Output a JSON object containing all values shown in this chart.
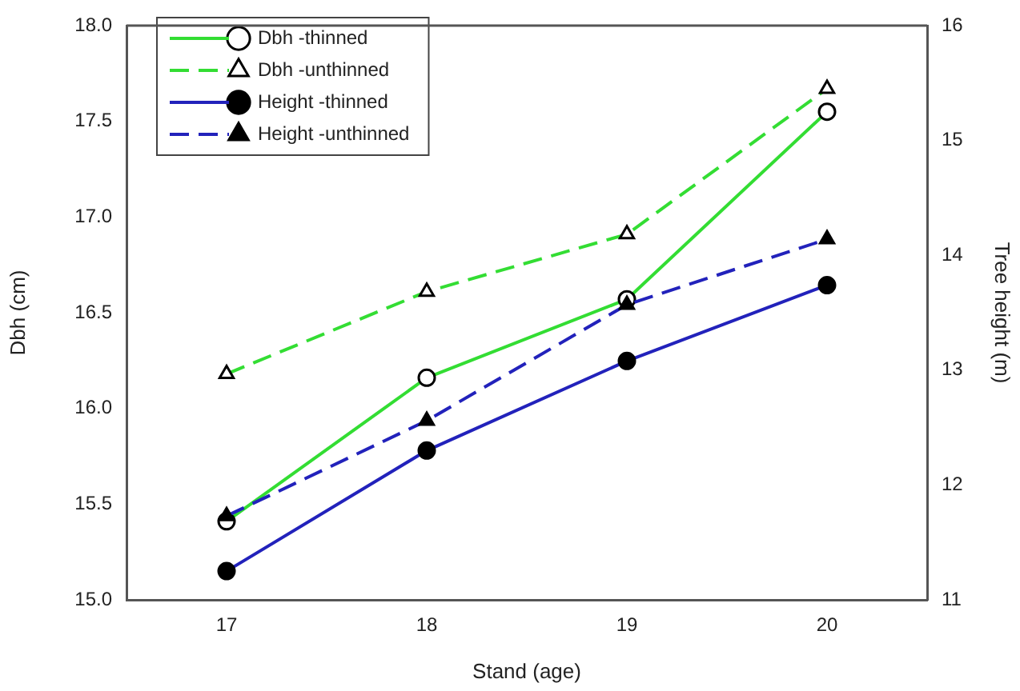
{
  "chart_data": {
    "type": "line",
    "xlabel": "Stand (age)",
    "ylabel": "Dbh (cm)",
    "y2label": "Tree height (m)",
    "x": [
      17,
      18,
      19,
      20
    ],
    "xlim": [
      16.5,
      20.5
    ],
    "xticks": [
      17,
      18,
      19,
      20
    ],
    "ylim": [
      15,
      18
    ],
    "yticks": [
      {
        "value": 15,
        "label": "15.0"
      },
      {
        "value": 15.5,
        "label": "15.5"
      },
      {
        "value": 16,
        "label": "16.0"
      },
      {
        "value": 16.5,
        "label": "16.5"
      },
      {
        "value": 17,
        "label": "17.0"
      },
      {
        "value": 17.5,
        "label": "17.5"
      },
      {
        "value": 18,
        "label": "18.0"
      }
    ],
    "y2lim": [
      11,
      16
    ],
    "y2ticks": [
      11,
      12,
      13,
      14,
      15,
      16
    ],
    "grid": false,
    "legend": "top left",
    "series": [
      {
        "name": "Dbh -thinned",
        "color": "#33dd33",
        "marker": "circle",
        "line_style": "solid",
        "values": [
          15.41,
          16.16,
          16.57,
          17.55
        ]
      },
      {
        "name": "Dbh -unthinned",
        "color": "#33dd33",
        "marker": "triangle",
        "line_style": "dashed",
        "values": [
          16.18,
          16.61,
          16.91,
          17.67
        ]
      },
      {
        "name": "Height -thinned",
        "color": "#2222bb",
        "marker": "circle",
        "line_style": "solid",
        "axis": "y2",
        "values": [
          11.25,
          12.3,
          13.08,
          13.74
        ]
      },
      {
        "name": "Height -unthinned",
        "color": "#2222bb",
        "marker": "triangle",
        "line_style": "dashed",
        "axis": "y2",
        "values": [
          11.73,
          12.56,
          13.57,
          14.14
        ]
      }
    ]
  }
}
